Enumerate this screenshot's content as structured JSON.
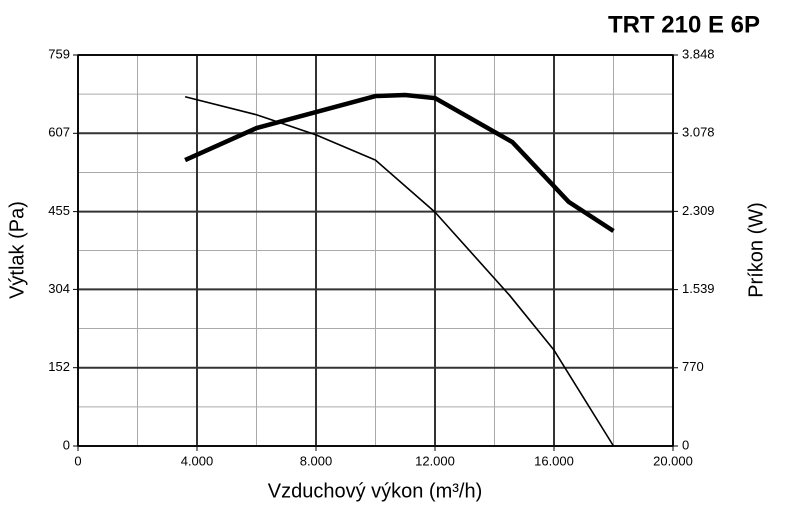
{
  "chart_data": {
    "type": "line",
    "title": "TRT 210 E 6P",
    "x_label": "Vzduchový výkon (m³/h)",
    "y_label": "Výtlak (Pa)",
    "y2_label": "Príkon (W)",
    "xlim": [
      0,
      20000
    ],
    "xticks": [
      0,
      {
        "value": 4000,
        "label": "4.000"
      },
      {
        "value": 8000,
        "label": "8.000"
      },
      {
        "value": 12000,
        "label": "12.000"
      },
      {
        "value": 16000,
        "label": "16.000"
      },
      {
        "value": 20000,
        "label": "20.000"
      }
    ],
    "ylim": [
      0,
      759
    ],
    "yticks": [
      0,
      152,
      304,
      455,
      607,
      759
    ],
    "y2lim": [
      0,
      3848
    ],
    "y2ticks": [
      0,
      770,
      {
        "value": 1539,
        "label": "1.539"
      },
      {
        "value": 2309,
        "label": "2.309"
      },
      {
        "value": 3078,
        "label": "3.078"
      },
      {
        "value": 3848,
        "label": "3.848"
      }
    ],
    "grid": true,
    "series": [
      {
        "color": "#000000",
        "width": 1.6,
        "x": [
          3600,
          6000,
          8000,
          10000,
          12000,
          14500,
          16000,
          18000
        ],
        "values": [
          678,
          643,
          604,
          555,
          454,
          293,
          186,
          0
        ]
      },
      {
        "color": "#000000",
        "width": 4.5,
        "axis": "y2",
        "x": [
          3600,
          6000,
          8000,
          10000,
          11000,
          12000,
          14600,
          16500,
          18000
        ],
        "values": [
          2814,
          3129,
          3286,
          3444,
          3454,
          3424,
          2991,
          2401,
          2116
        ]
      }
    ]
  }
}
